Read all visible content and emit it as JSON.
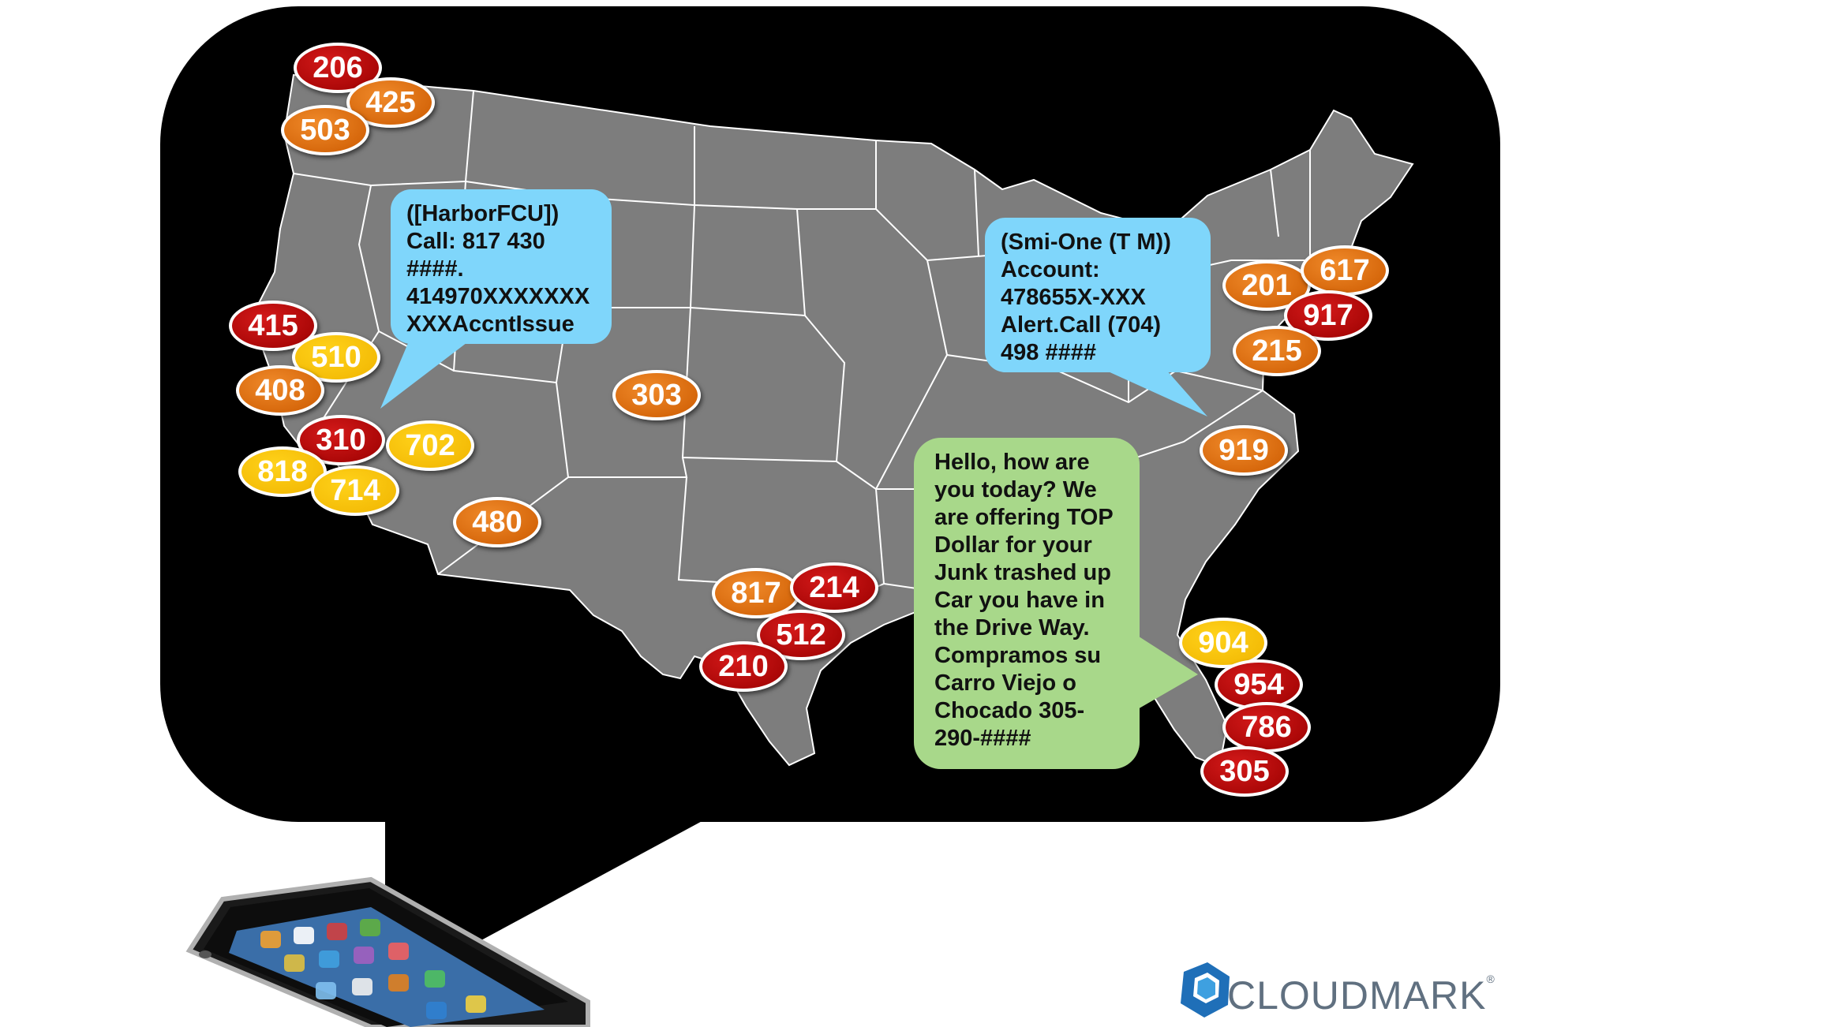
{
  "messages": {
    "harbor": "([HarborFCU])\nCall: 817 430\n####.\n414970XXXXXXX\nXXXAccntIssue",
    "smione": "(Smi-One (T M))\nAccount:\n478655X-XXX\nAlert.Call  (704)\n498 ####",
    "junkcar": "Hello, how are\nyou today? We\nare offering TOP\nDollar for your\nJunk trashed up\nCar you have in\nthe Drive Way.\nCompramos su\nCarro Viejo o\nChocado 305-\n290-####"
  },
  "area_codes": [
    {
      "code": "206",
      "color": "red"
    },
    {
      "code": "425",
      "color": "orange"
    },
    {
      "code": "503",
      "color": "orange"
    },
    {
      "code": "415",
      "color": "red"
    },
    {
      "code": "510",
      "color": "yellow"
    },
    {
      "code": "408",
      "color": "orange"
    },
    {
      "code": "310",
      "color": "red"
    },
    {
      "code": "702",
      "color": "yellow"
    },
    {
      "code": "818",
      "color": "yellow"
    },
    {
      "code": "714",
      "color": "yellow"
    },
    {
      "code": "480",
      "color": "orange"
    },
    {
      "code": "303",
      "color": "orange"
    },
    {
      "code": "817",
      "color": "orange"
    },
    {
      "code": "214",
      "color": "red"
    },
    {
      "code": "512",
      "color": "red"
    },
    {
      "code": "210",
      "color": "red"
    },
    {
      "code": "201",
      "color": "orange"
    },
    {
      "code": "617",
      "color": "orange"
    },
    {
      "code": "917",
      "color": "red"
    },
    {
      "code": "215",
      "color": "orange"
    },
    {
      "code": "919",
      "color": "orange"
    },
    {
      "code": "904",
      "color": "yellow"
    },
    {
      "code": "954",
      "color": "red"
    },
    {
      "code": "786",
      "color": "red"
    },
    {
      "code": "305",
      "color": "red"
    }
  ],
  "colors": {
    "red": "#b30000",
    "orange": "#e06f10",
    "yellow": "#f8c400",
    "blue_sms": "#7fd6fb",
    "green_sms": "#a8d88a",
    "bubble": "#000000",
    "map": "#7d7d7d"
  },
  "logo": {
    "text": "CLOUDMARK",
    "registered": "®"
  },
  "icons": {
    "phone": "smartphone-icon",
    "logo_mark": "cloudmark-hexagon-icon"
  }
}
